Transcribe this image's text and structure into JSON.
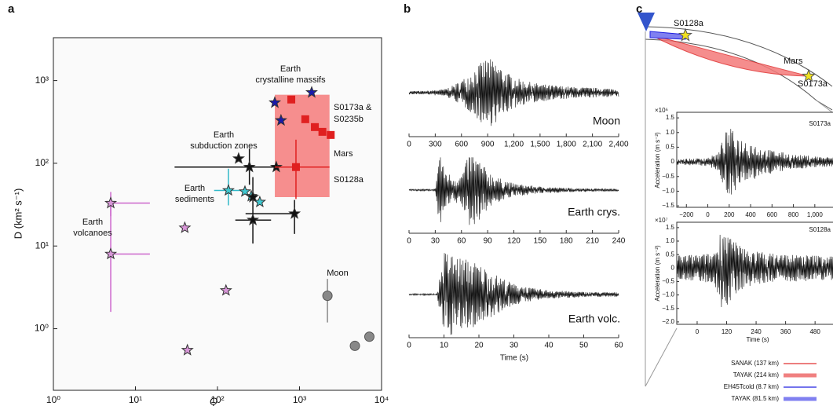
{
  "panel_labels": [
    "a",
    "b",
    "c"
  ],
  "diagram": {
    "labels": [
      "S0128a",
      "Mars",
      "S0173a"
    ],
    "label_color": "#e02020",
    "legend": [
      {
        "name": "SANAK (137 km)",
        "color": "#e03030"
      },
      {
        "name": "TAYAK (214 km)",
        "color": "#f08080"
      },
      {
        "name": "EH45Tcold (8.7 km)",
        "color": "#2020e0"
      },
      {
        "name": "TAYAK (81.5 km)",
        "color": "#8080f0"
      }
    ]
  },
  "chart_data": [
    {
      "type": "scatter",
      "xlabel": "Q",
      "ylabel": "D (km² s⁻¹)",
      "xscale": "log",
      "yscale": "log",
      "xlim": [
        1,
        10000
      ],
      "ylim": [
        0.18,
        3300
      ],
      "xticks": [
        {
          "value": 1,
          "label": "10⁰"
        },
        {
          "value": 10,
          "label": "10¹"
        },
        {
          "value": 100,
          "label": "10²"
        },
        {
          "value": 1000,
          "label": "10³"
        },
        {
          "value": 10000,
          "label": "10⁴"
        }
      ],
      "yticks": [
        {
          "value": 1,
          "label": "10⁰"
        },
        {
          "value": 10,
          "label": "10¹"
        },
        {
          "value": 100,
          "label": "10²"
        },
        {
          "value": 1000,
          "label": "10³"
        }
      ],
      "region": {
        "color": "#f47a7a",
        "xlim": [
          500,
          2320
        ],
        "ylim": [
          39,
          674
        ]
      },
      "series": [
        {
          "name_lines": [
            "Earth",
            "volcanoes"
          ],
          "color": "#cc66cc",
          "fill": "#d896d8",
          "marker": "star",
          "x": [
            5,
            5,
            40,
            127,
            43
          ],
          "y": [
            33,
            8,
            16.6,
            2.9,
            0.55
          ],
          "xerr": [
            [
              5,
              15
            ],
            [
              5,
              15
            ],
            null,
            null,
            null
          ],
          "yerr": [
            [
              23,
              45
            ],
            [
              1.6,
              34
            ],
            null,
            null,
            null
          ]
        },
        {
          "name_lines": [
            "Earth",
            "sediments"
          ],
          "color": "#30b8c8",
          "fill": "#40c8d0",
          "marker": "star",
          "x": [
            136,
            216,
            258,
            328
          ],
          "y": [
            47,
            45.5,
            40,
            34
          ],
          "xerr": [
            [
              91,
              211
            ],
            null,
            null,
            null
          ],
          "yerr": [
            [
              31,
              86
            ],
            null,
            null,
            null
          ]
        },
        {
          "name_lines": [
            "Earth",
            "subduction zones"
          ],
          "color": "#111111",
          "fill": "#111111",
          "marker": "star",
          "x": [
            181,
            245,
            521,
            869,
            270,
            270
          ],
          "y": [
            114,
            90,
            90,
            24.6,
            39,
            20.6
          ],
          "xerr": [
            null,
            [
              30,
              520
            ],
            null,
            [
              220,
              870
            ],
            null,
            [
              165,
              450
            ]
          ],
          "yerr": [
            null,
            [
              55,
              150
            ],
            null,
            [
              14,
              36
            ],
            null,
            [
              10.7,
              68
            ]
          ]
        },
        {
          "name_lines": [
            "Earth",
            "crystalline massifs"
          ],
          "color": "#1a1aaa",
          "fill": "#1a1aaa",
          "marker": "star",
          "x": [
            500,
            595,
            1406
          ],
          "y": [
            541,
            330,
            719
          ],
          "xerr": [
            null,
            null,
            null
          ],
          "yerr": [
            null,
            null,
            null
          ]
        },
        {
          "name_lines": [
            "Mars"
          ],
          "color": "#e02020",
          "fill": "#e02020",
          "marker": "square",
          "x": [
            794,
            1175,
            1538,
            1900,
            2400,
            905
          ],
          "y": [
            590,
            341,
            274,
            240,
            220,
            90
          ],
          "xerr": [
            null,
            null,
            null,
            null,
            null,
            [
              500,
              2320
            ]
          ],
          "yerr": [
            null,
            null,
            null,
            null,
            null,
            [
              37,
              193
            ]
          ]
        },
        {
          "name_lines": [
            "Moon"
          ],
          "color": "#888888",
          "fill": "#888888",
          "marker": "circle",
          "x": [
            2190,
            4730,
            7100
          ],
          "y": [
            2.5,
            0.62,
            0.8
          ],
          "xerr": [
            null,
            null,
            null
          ],
          "yerr": [
            [
              1.19,
              4
            ],
            null,
            null
          ]
        }
      ],
      "annotations": [
        {
          "lines": [
            "S0173a &",
            "S0235b"
          ],
          "color": "#e02020"
        },
        {
          "lines": [
            "S0128a"
          ],
          "color": "#e02020"
        }
      ]
    },
    {
      "type": "waveform",
      "label": "Moon",
      "label_color": "#999999",
      "color": "#111111",
      "xlim": [
        0,
        2400
      ],
      "xticks": [
        0,
        300,
        600,
        900,
        {
          "value": 1200,
          "label": "1,200"
        },
        {
          "value": 1500,
          "label": "1,500"
        },
        {
          "value": 1800,
          "label": "1,800"
        },
        {
          "value": 2100,
          "label": "2,100"
        },
        {
          "value": 2400,
          "label": "2,400"
        }
      ],
      "x": [
        0,
        100,
        200,
        300,
        400,
        500,
        600,
        700,
        800,
        900,
        1000,
        1100,
        1200,
        1300,
        1400,
        1500,
        1600,
        1700,
        1800,
        1900,
        2000,
        2100,
        2200,
        2300,
        2400
      ],
      "envelope": [
        0.05,
        0.05,
        0.05,
        0.08,
        0.1,
        0.2,
        0.35,
        0.55,
        0.8,
        1,
        0.85,
        0.6,
        0.45,
        0.35,
        0.3,
        0.25,
        0.22,
        0.2,
        0.18,
        0.16,
        0.15,
        0.14,
        0.13,
        0.12,
        0.12
      ]
    },
    {
      "type": "waveform",
      "label": "Earth crys.",
      "label_color": "#2222cc",
      "color": "#111111",
      "xlim": [
        0,
        240
      ],
      "xticks": [
        0,
        30,
        60,
        90,
        120,
        150,
        180,
        210,
        240
      ],
      "x": [
        0,
        30,
        35,
        40,
        50,
        60,
        70,
        80,
        90,
        100,
        120,
        150,
        180,
        210,
        240
      ],
      "envelope": [
        0.02,
        0.02,
        1,
        0.5,
        0.3,
        0.35,
        0.9,
        0.7,
        0.45,
        0.3,
        0.15,
        0.08,
        0.05,
        0.04,
        0.03
      ]
    },
    {
      "type": "waveform",
      "label": "Earth volc.",
      "label_color": "#cc66cc",
      "color": "#111111",
      "xlabel": "Time (s)",
      "xlim": [
        0,
        60
      ],
      "xticks": [
        0,
        10,
        20,
        30,
        40,
        50,
        60
      ],
      "x": [
        0,
        8,
        10,
        12,
        15,
        18,
        20,
        25,
        30,
        35,
        40,
        50,
        60
      ],
      "envelope": [
        0.02,
        0.02,
        1,
        0.95,
        0.85,
        0.8,
        0.7,
        0.45,
        0.25,
        0.15,
        0.1,
        0.06,
        0.05
      ]
    },
    {
      "type": "waveform",
      "label": "S0173a",
      "label_color": "#e02020",
      "color": "#111111",
      "ylabel": "Acceleration (m s⁻²)",
      "y_multiplier": "×10⁶",
      "xlim": [
        -290,
        1170
      ],
      "xticks": [
        {
          "value": -200,
          "label": "−200"
        },
        0,
        200,
        400,
        600,
        800,
        {
          "value": 1000,
          "label": "1,000"
        }
      ],
      "ylim": [
        -1.55,
        1.69
      ],
      "yticks": [
        1.5,
        {
          "value": 1,
          "label": "1.0"
        },
        0.5,
        0,
        {
          "value": -0.5,
          "label": "−0.5"
        },
        {
          "value": -1,
          "label": "−1.0"
        },
        {
          "value": -1.5,
          "label": "−1.5"
        }
      ],
      "x": [
        -290,
        -100,
        0,
        100,
        150,
        200,
        250,
        300,
        400,
        500,
        600,
        800,
        1000,
        1170
      ],
      "envelope": [
        0.1,
        0.12,
        0.15,
        0.3,
        0.9,
        1.2,
        1,
        0.8,
        0.7,
        0.45,
        0.4,
        0.25,
        0.2,
        0.15
      ]
    },
    {
      "type": "waveform",
      "label": "S0128a",
      "label_color": "#e02020",
      "color": "#111111",
      "ylabel": "Acceleration (m s⁻²)",
      "y_multiplier": "×10⁷",
      "xlabel": "Time (s)",
      "xlim": [
        -83,
        553
      ],
      "xticks": [
        0,
        120,
        240,
        360,
        480
      ],
      "ylim": [
        -2.09,
        1.7
      ],
      "yticks": [
        1.5,
        {
          "value": 1,
          "label": "1.0"
        },
        0.5,
        0,
        {
          "value": -0.5,
          "label": "−0.5"
        },
        {
          "value": -1,
          "label": "−1.0"
        },
        {
          "value": -1.5,
          "label": "−1.5"
        },
        {
          "value": -2,
          "label": "−2.0"
        }
      ],
      "x": [
        -83,
        0,
        60,
        80,
        100,
        120,
        150,
        200,
        300,
        400,
        553
      ],
      "envelope": [
        0.5,
        0.5,
        0.55,
        0.8,
        1.6,
        1.4,
        1,
        0.7,
        0.55,
        0.5,
        0.45
      ]
    }
  ]
}
